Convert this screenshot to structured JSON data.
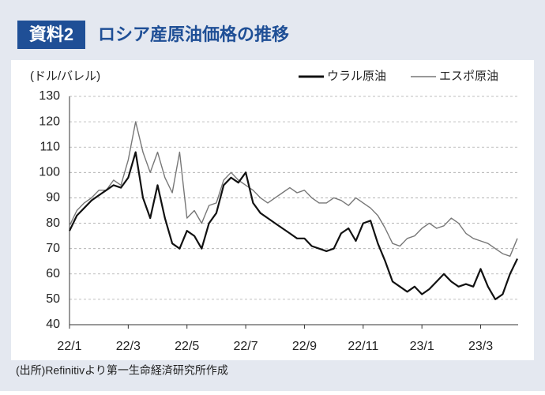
{
  "header": {
    "badge": "資料2",
    "title": "ロシア産原油価格の推移"
  },
  "chart_data": {
    "type": "line",
    "y_label": "(ドル/バレル)",
    "categories": [
      "22/1",
      null,
      null,
      null,
      null,
      null,
      null,
      null,
      "22/3",
      null,
      null,
      null,
      null,
      null,
      null,
      null,
      "22/5",
      null,
      null,
      null,
      null,
      null,
      null,
      null,
      "22/7",
      null,
      null,
      null,
      null,
      null,
      null,
      null,
      "22/9",
      null,
      null,
      null,
      null,
      null,
      null,
      null,
      "22/11",
      null,
      null,
      null,
      null,
      null,
      null,
      null,
      "23/1",
      null,
      null,
      null,
      null,
      null,
      null,
      null,
      "23/3",
      null,
      null,
      null,
      null,
      null
    ],
    "series": [
      {
        "name": "ウラル原油",
        "color": "#111111",
        "values": [
          77,
          83,
          86,
          89,
          91,
          93,
          95,
          94,
          98,
          108,
          90,
          82,
          95,
          82,
          72,
          70,
          77,
          75,
          70,
          80,
          84,
          95,
          98,
          96,
          100,
          88,
          84,
          82,
          80,
          78,
          76,
          74,
          74,
          71,
          70,
          69,
          70,
          76,
          78,
          73,
          80,
          81,
          72,
          65,
          57,
          55,
          53,
          55,
          52,
          54,
          57,
          60,
          57,
          55,
          56,
          55,
          62,
          55,
          50,
          52,
          60,
          66
        ]
      },
      {
        "name": "エスポ原油",
        "color": "#777777",
        "values": [
          79,
          85,
          88,
          90,
          93,
          93,
          97,
          95,
          105,
          120,
          108,
          100,
          108,
          98,
          92,
          108,
          82,
          85,
          80,
          87,
          88,
          97,
          100,
          97,
          95,
          93,
          90,
          88,
          90,
          92,
          94,
          92,
          93,
          90,
          88,
          88,
          90,
          89,
          87,
          90,
          88,
          86,
          83,
          78,
          72,
          71,
          74,
          75,
          78,
          80,
          78,
          79,
          82,
          80,
          76,
          74,
          73,
          72,
          70,
          68,
          67,
          74
        ]
      }
    ],
    "ylim": [
      40,
      130
    ],
    "yticks": [
      40,
      50,
      60,
      70,
      80,
      90,
      100,
      110,
      120,
      130
    ],
    "grid": true,
    "legend": "top-right"
  },
  "source": "(出所)Refinitivより第一生命経済研究所作成"
}
